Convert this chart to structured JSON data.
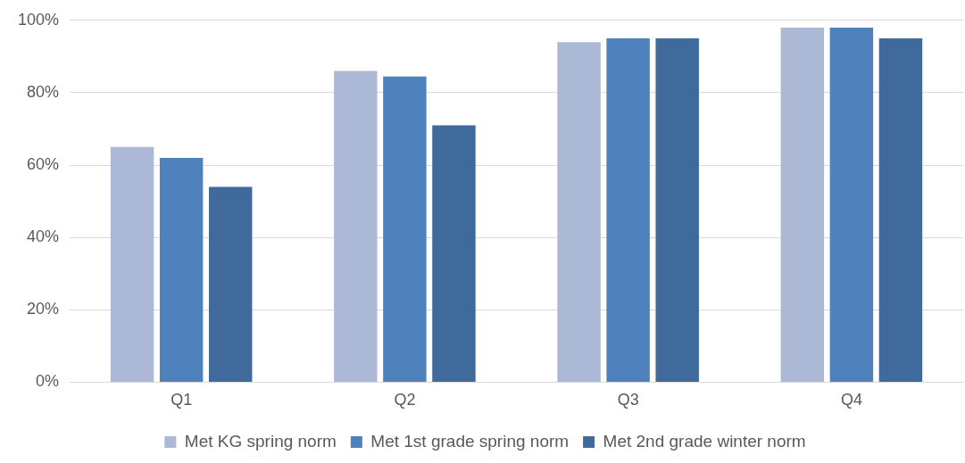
{
  "chart_data": {
    "type": "bar",
    "categories": [
      "Q1",
      "Q2",
      "Q3",
      "Q4"
    ],
    "series": [
      {
        "name": "Met KG spring norm",
        "color": "#abb9d7",
        "values": [
          65,
          86,
          94,
          98
        ]
      },
      {
        "name": "Met 1st grade spring norm",
        "color": "#4f81bd",
        "values": [
          62,
          84.5,
          95,
          98
        ]
      },
      {
        "name": "Met 2nd grade winter norm",
        "color": "#3f6a9b",
        "values": [
          54,
          71,
          95,
          95
        ]
      }
    ],
    "ylim": [
      0,
      100
    ],
    "yticks": [
      {
        "value": 0,
        "label": "0%"
      },
      {
        "value": 20,
        "label": "20%"
      },
      {
        "value": 40,
        "label": "40%"
      },
      {
        "value": 60,
        "label": "60%"
      },
      {
        "value": 80,
        "label": "80%"
      },
      {
        "value": 100,
        "label": "100%"
      }
    ],
    "grid": "y",
    "legend": "bottom"
  }
}
